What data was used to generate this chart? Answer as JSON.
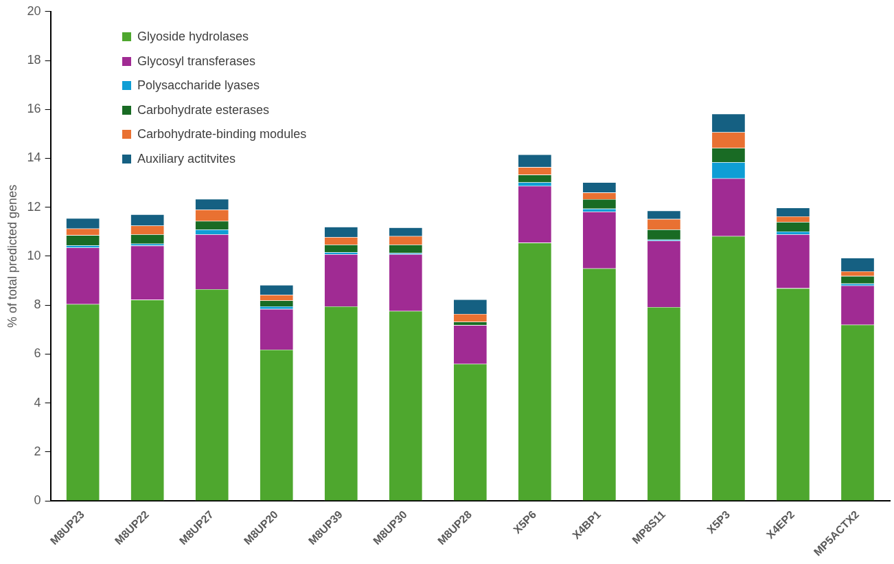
{
  "chart_data": {
    "type": "bar",
    "stacked": true,
    "ylabel": "% of total predicted genes",
    "categories": [
      "M8UP23",
      "M8UP22",
      "M8UP27",
      "M8UP20",
      "M8UP39",
      "M8UP30",
      "M8UP28",
      "X5P6",
      "X4BP1",
      "MP8S11",
      "X5P3",
      "X4EP2",
      "MP5ACTX2"
    ],
    "series": [
      {
        "name": "Glyoside hydrolases",
        "color": "#4ea72e",
        "values": [
          8.04,
          8.22,
          8.65,
          6.18,
          7.95,
          7.76,
          5.6,
          10.55,
          9.5,
          7.92,
          10.82,
          8.69,
          7.2
        ]
      },
      {
        "name": "Glycosyl transferases",
        "color": "#a02b93",
        "values": [
          2.31,
          2.21,
          2.24,
          1.66,
          2.13,
          2.32,
          1.58,
          2.32,
          2.32,
          2.71,
          2.36,
          2.2,
          1.6
        ]
      },
      {
        "name": "Polysaccharide lyases",
        "color": "#0f9ed5",
        "values": [
          0.09,
          0.08,
          0.2,
          0.11,
          0.08,
          0.05,
          null,
          0.15,
          0.12,
          0.05,
          0.66,
          0.12,
          0.08
        ]
      },
      {
        "name": "Carbohydrate esterases",
        "color": "#196b24",
        "values": [
          0.42,
          0.38,
          0.35,
          0.24,
          0.31,
          0.34,
          0.14,
          0.31,
          0.39,
          0.41,
          0.58,
          0.39,
          0.31
        ]
      },
      {
        "name": "Carbohydrate-binding modules",
        "color": "#e97132",
        "values": [
          0.27,
          0.36,
          0.46,
          0.23,
          0.31,
          0.35,
          0.32,
          0.31,
          0.27,
          0.43,
          0.65,
          0.23,
          0.19
        ]
      },
      {
        "name": "Auxiliary actitvites",
        "color": "#156082",
        "values": [
          0.42,
          0.46,
          0.44,
          0.4,
          0.42,
          0.35,
          0.59,
          0.52,
          0.42,
          0.34,
          0.75,
          0.35,
          0.55
        ]
      }
    ],
    "ylim": [
      0,
      20
    ],
    "yticks": [
      0,
      2,
      4,
      6,
      8,
      10,
      12,
      14,
      16,
      18,
      20
    ],
    "grid": false,
    "legend": "top left"
  }
}
